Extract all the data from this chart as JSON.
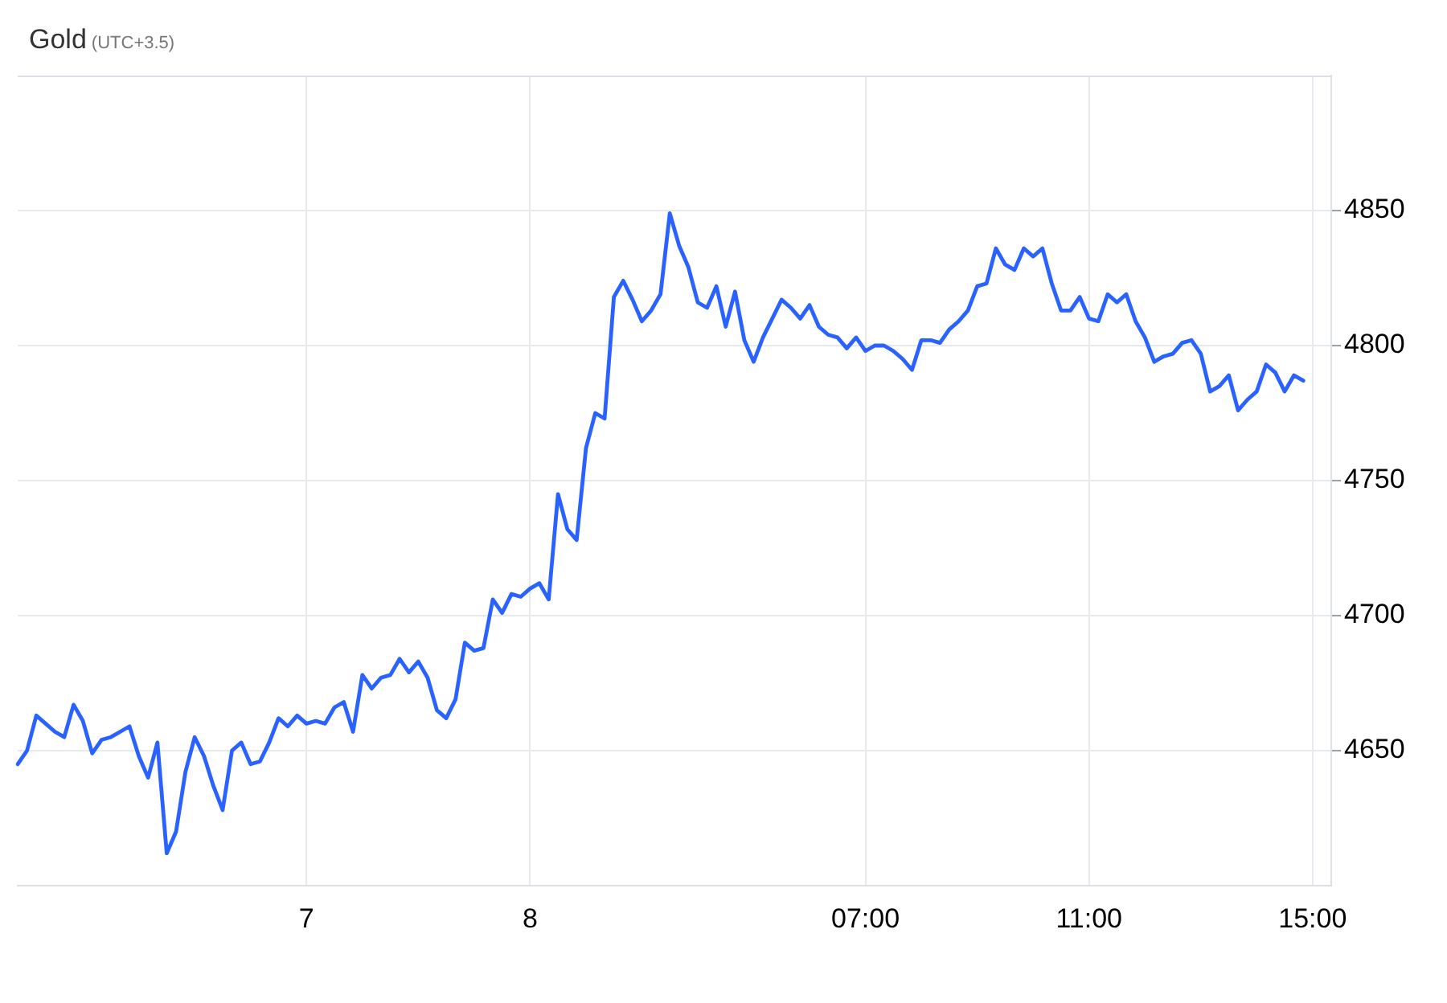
{
  "chart_data": {
    "type": "line",
    "title": "Gold",
    "subtitle": "(UTC+3.5)",
    "categories": [
      null,
      null,
      null,
      null,
      null,
      null,
      null,
      null,
      null,
      null,
      null,
      null,
      null,
      null,
      null,
      null,
      null,
      null,
      null,
      null,
      null,
      null,
      null,
      null,
      null,
      null,
      null,
      null,
      null,
      null,
      null,
      "7",
      null,
      null,
      null,
      null,
      null,
      null,
      null,
      null,
      null,
      null,
      null,
      null,
      null,
      null,
      null,
      null,
      null,
      null,
      null,
      null,
      null,
      null,
      null,
      "8",
      null,
      null,
      null,
      null,
      null,
      null,
      null,
      null,
      null,
      null,
      null,
      null,
      null,
      null,
      null,
      null,
      null,
      null,
      null,
      null,
      null,
      null,
      null,
      null,
      null,
      null,
      null,
      null,
      null,
      null,
      null,
      null,
      null,
      null,
      null,
      "07:00",
      null,
      null,
      null,
      null,
      null,
      null,
      null,
      null,
      null,
      null,
      null,
      null,
      null,
      null,
      null,
      null,
      null,
      null,
      null,
      null,
      null,
      null,
      null,
      "11:00",
      null,
      null,
      null,
      null,
      null,
      null,
      null,
      null,
      null,
      null,
      null,
      null,
      null,
      null,
      null,
      null,
      null,
      null,
      null,
      null,
      null,
      null,
      null,
      "15:00",
      null,
      null
    ],
    "values": [
      4645,
      4650,
      4663,
      4660,
      4657,
      4655,
      4667,
      4661,
      4649,
      4654,
      4655,
      4657,
      4659,
      4648,
      4640,
      4653,
      4612,
      4620,
      4642,
      4655,
      4648,
      4637,
      4628,
      4650,
      4653,
      4645,
      4646,
      4653,
      4662,
      4659,
      4663,
      4660,
      4661,
      4660,
      4666,
      4668,
      4657,
      4678,
      4673,
      4677,
      4678,
      4684,
      4679,
      4683,
      4677,
      4665,
      4662,
      4669,
      4690,
      4687,
      4688,
      4706,
      4701,
      4708,
      4707,
      4710,
      4712,
      4706,
      4745,
      4732,
      4728,
      4762,
      4775,
      4773,
      4818,
      4824,
      4817,
      4809,
      4813,
      4819,
      4849,
      4837,
      4829,
      4816,
      4814,
      4822,
      4807,
      4820,
      4802,
      4794,
      4803,
      4810,
      4817,
      4814,
      4810,
      4815,
      4807,
      4804,
      4803,
      4799,
      4803,
      4798,
      4800,
      4800,
      4798,
      4795,
      4791,
      4802,
      4802,
      4801,
      4806,
      4809,
      4813,
      4822,
      4823,
      4836,
      4830,
      4828,
      4836,
      4833,
      4836,
      4823,
      4813,
      4813,
      4818,
      4810,
      4809,
      4819,
      4816,
      4819,
      4809,
      4803,
      4794,
      4796,
      4797,
      4801,
      4802,
      4797,
      4783,
      4785,
      4789,
      4776,
      4780,
      4783,
      4793,
      4790,
      4783,
      4789,
      4787,
      null,
      null,
      null
    ],
    "color": "#2962ff",
    "ylim": [
      4600,
      4900
    ],
    "yticks": [
      4650,
      4700,
      4750,
      4800,
      4850
    ],
    "grid": true,
    "marker": "none"
  }
}
